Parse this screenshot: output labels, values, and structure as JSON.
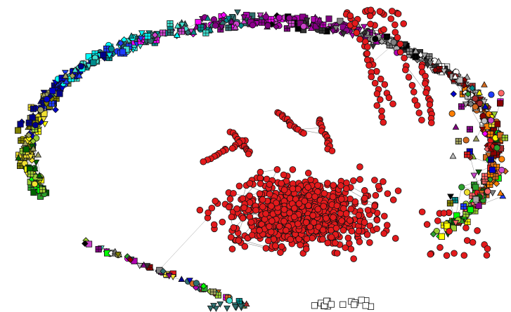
{
  "network": {
    "colors": {
      "background": "#ffffff",
      "edge": "#222222",
      "node_stroke": "#111111",
      "core_cluster": "#e31a1c"
    },
    "ring_palette": [
      "#00ff00",
      "#2ca02c",
      "#006400",
      "#9acd32",
      "#ffff00",
      "#f0e030",
      "#808000",
      "#a0a060",
      "#0000cd",
      "#00008b",
      "#1e3cff",
      "#00ffff",
      "#40e0d0",
      "#008b8b",
      "#2f6f6f",
      "#ff00ff",
      "#cc44cc",
      "#8b008b",
      "#800080",
      "#b000b0",
      "#000000",
      "#333333",
      "#808080",
      "#a9a9a9",
      "#c0c0c0",
      "#ffffff",
      "#8b0000",
      "#a52a2a",
      "#ff7f00",
      "#d2691e",
      "#e31a1c",
      "#ff6666"
    ],
    "shapes": [
      "circle",
      "square",
      "triangle",
      "diamond",
      "triangle-down",
      "grid-square"
    ]
  }
}
